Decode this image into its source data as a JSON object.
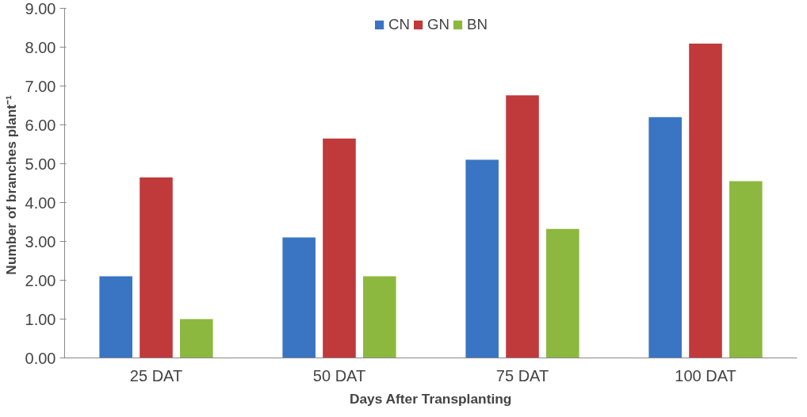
{
  "chart_data": {
    "type": "bar",
    "xlabel": "Days After Transplanting",
    "ylabel": "Number  of branches plant⁻¹",
    "categories": [
      "25 DAT",
      "50 DAT",
      "75 DAT",
      "100 DAT"
    ],
    "series": [
      {
        "name": "CN",
        "color": "#3a75c4",
        "values": [
          2.1,
          3.1,
          5.1,
          6.2
        ]
      },
      {
        "name": "GN",
        "color": "#c0393b",
        "values": [
          4.65,
          5.65,
          6.76,
          8.09
        ]
      },
      {
        "name": "BN",
        "color": "#8db83f",
        "values": [
          1.0,
          2.1,
          3.32,
          4.55
        ]
      }
    ],
    "ylim": [
      0,
      9
    ],
    "yticks": [
      {
        "value": 0,
        "label": "0.00"
      },
      {
        "value": 1,
        "label": "1.00"
      },
      {
        "value": 2,
        "label": "2.00"
      },
      {
        "value": 3,
        "label": "3.00"
      },
      {
        "value": 4,
        "label": "4.00"
      },
      {
        "value": 5,
        "label": "5.00"
      },
      {
        "value": 6,
        "label": "6.00"
      },
      {
        "value": 7,
        "label": "7.00"
      },
      {
        "value": 8,
        "label": "8.00"
      },
      {
        "value": 9,
        "label": "9.00"
      }
    ],
    "grid": false,
    "legend": "top"
  }
}
